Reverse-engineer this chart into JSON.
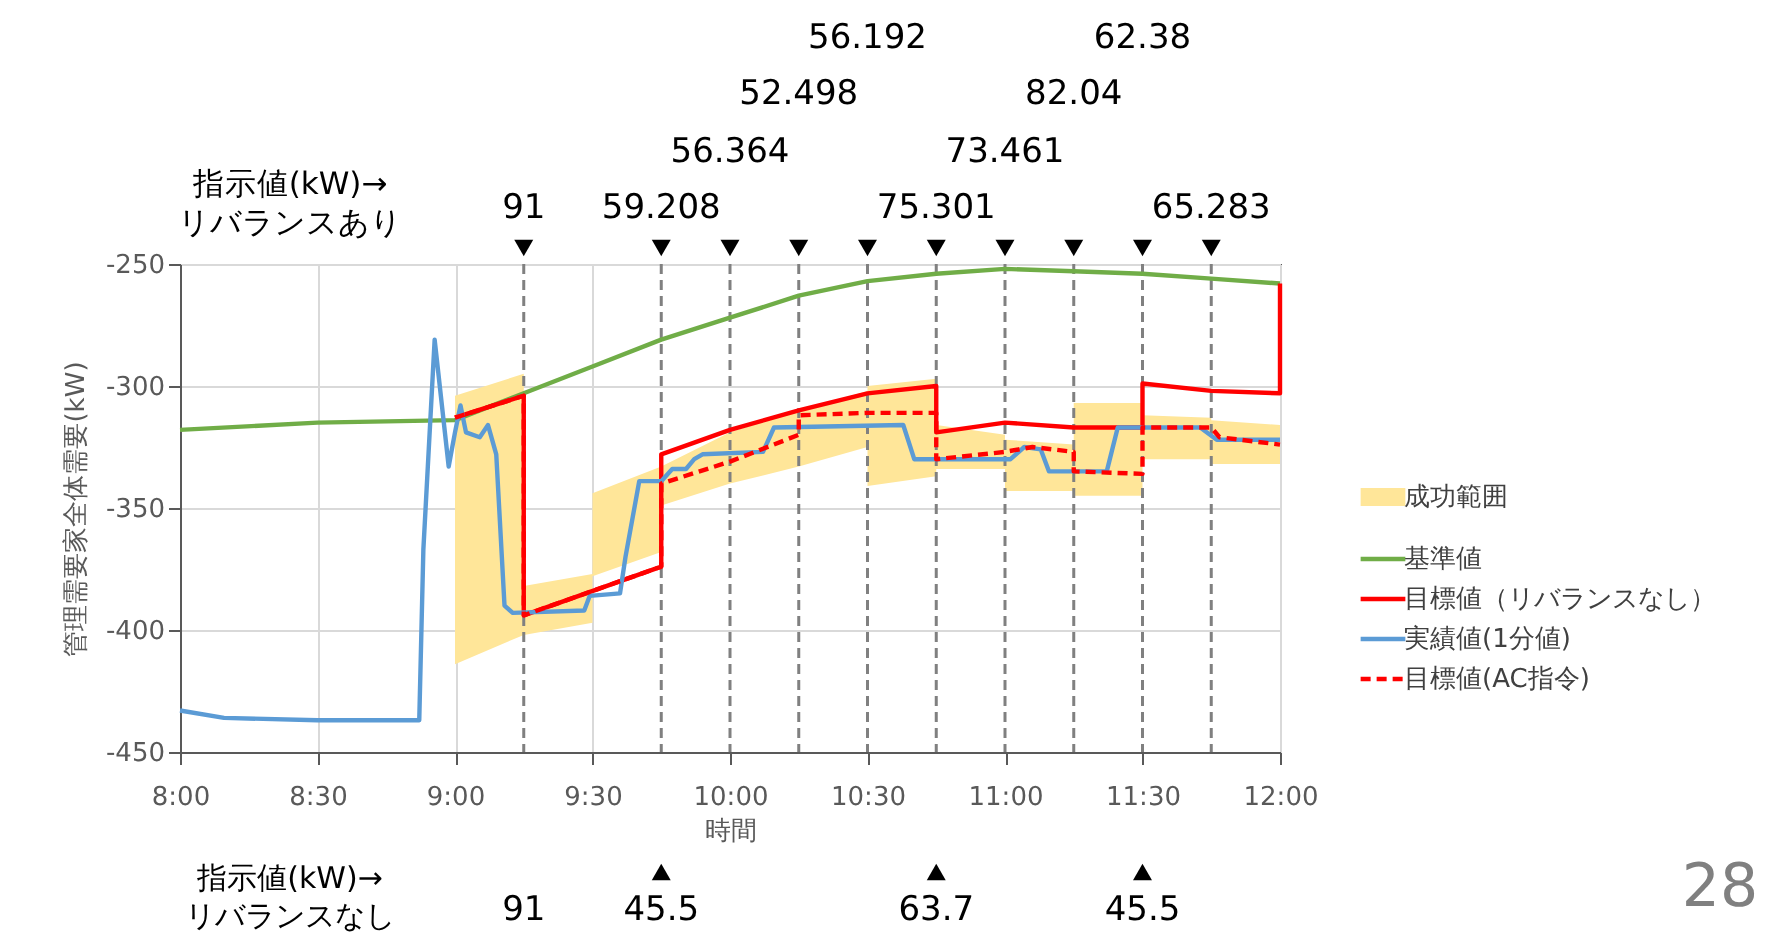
{
  "chart_data": {
    "type": "line",
    "xlabel": "時間",
    "ylabel": "管理需要家全体需要(kW)",
    "xlim": [
      8,
      12
    ],
    "ylim": [
      -450,
      -250
    ],
    "xticks": [
      {
        "value": 8,
        "label": "8:00"
      },
      {
        "value": 8.5,
        "label": "8:30"
      },
      {
        "value": 9,
        "label": "9:00"
      },
      {
        "value": 9.5,
        "label": "9:30"
      },
      {
        "value": 10,
        "label": "10:00"
      },
      {
        "value": 10.5,
        "label": "10:30"
      },
      {
        "value": 11,
        "label": "11:00"
      },
      {
        "value": 11.5,
        "label": "11:30"
      },
      {
        "value": 12,
        "label": "12:00"
      }
    ],
    "yticks": [
      -450,
      -400,
      -350,
      -300,
      -250
    ],
    "grid": true,
    "legend": "right",
    "series": [
      {
        "name": "成功範囲",
        "type": "area",
        "color": "#ffe699",
        "x": [
          9,
          9.25,
          9.25,
          9.5,
          9.5,
          9.75,
          9.75,
          10,
          10.25,
          10.5,
          10.5,
          10.75,
          10.75,
          11,
          11,
          11.25,
          11.25,
          11.5,
          11.5,
          11.75,
          11.75,
          12
        ],
        "values": [
          null,
          null,
          null,
          null,
          null,
          null,
          null,
          null,
          null,
          null,
          null,
          null,
          null,
          null,
          null,
          null,
          null,
          null,
          null,
          null,
          null,
          null
        ],
        "upper": [
          -304,
          -295,
          -382,
          -377,
          -344,
          -333,
          -333,
          -319,
          -310,
          -302,
          -300,
          -297,
          -316,
          -320,
          -322,
          -324,
          -307,
          -307,
          -312,
          -313,
          -314,
          -316
        ],
        "lower": [
          -414,
          -402,
          -402,
          -397,
          -378,
          -368,
          -349,
          -340,
          -333,
          -325,
          -341,
          -337,
          -334,
          -334,
          -343,
          -343,
          -345,
          -345,
          -330,
          -330,
          -332,
          -332
        ]
      },
      {
        "name": "基準値",
        "color": "#70ad47",
        "x": [
          8,
          8.5,
          9,
          9.25,
          9.5,
          9.75,
          10,
          10.25,
          10.5,
          10.75,
          11,
          11.25,
          11.5,
          11.75,
          12
        ],
        "values": [
          -318,
          -315,
          -314,
          -303,
          -292,
          -281,
          -272,
          -263,
          -257,
          -254,
          -252,
          -253,
          -254,
          -256,
          -258
        ]
      },
      {
        "name": "目標値（リバランスなし）",
        "color": "#ff0000",
        "x": [
          9,
          9.25,
          9.25,
          9.75,
          9.75,
          10,
          10.25,
          10.5,
          10.75,
          10.75,
          11,
          11.25,
          11.5,
          11.5,
          11.75,
          12,
          12
        ],
        "values": [
          -313,
          -304,
          -394,
          -374,
          -328,
          -318,
          -310,
          -303,
          -300,
          -319,
          -315,
          -317,
          -317,
          -299,
          -302,
          -303,
          -258
        ]
      },
      {
        "name": "実績値(1分値)",
        "color": "#5b9bd5",
        "x": [
          8,
          8.16,
          8.5,
          8.87,
          8.885,
          8.926,
          8.977,
          9.0,
          9.02,
          9.04,
          9.09,
          9.12,
          9.15,
          9.18,
          9.21,
          9.47,
          9.49,
          9.6,
          9.62,
          9.67,
          9.75,
          9.79,
          9.84,
          9.87,
          9.9,
          10.12,
          10.16,
          10.63,
          10.67,
          11.02,
          11.07,
          11.13,
          11.16,
          11.37,
          11.41,
          11.71,
          11.77,
          12
        ],
        "values": [
          -433,
          -436,
          -437,
          -437,
          -367,
          -281,
          -333,
          -319,
          -308,
          -319,
          -321,
          -316,
          -328,
          -390,
          -393,
          -392,
          -386,
          -385,
          -370,
          -339,
          -339,
          -334,
          -334,
          -330,
          -328,
          -327,
          -317,
          -316,
          -330,
          -330,
          -325,
          -326,
          -335,
          -335,
          -317,
          -317,
          -322,
          -322
        ]
      },
      {
        "name": "目標値(AC指令)",
        "color": "#ff0000",
        "line_style": "dashed",
        "x": [
          9,
          9.25,
          9.25,
          9.75,
          9.75,
          10,
          10.25,
          10.25,
          10.5,
          10.75,
          10.75,
          11,
          11.1,
          11.25,
          11.25,
          11.5,
          11.5,
          11.75,
          11.78,
          12
        ],
        "values": [
          -313,
          -304,
          -394,
          -374,
          -340,
          -331,
          -320,
          -312,
          -311,
          -311,
          -330,
          -327,
          -325,
          -327,
          -335,
          -336,
          -317,
          -317,
          -321,
          -324
        ]
      }
    ],
    "ref_lines": [
      {
        "axis": "x",
        "value": 9.25,
        "color": "#808080",
        "line_style": "dashed"
      },
      {
        "axis": "x",
        "value": 9.75,
        "color": "#808080",
        "line_style": "dashed"
      },
      {
        "axis": "x",
        "value": 10,
        "color": "#808080",
        "line_style": "dashed"
      },
      {
        "axis": "x",
        "value": 10.25,
        "color": "#808080",
        "line_style": "dashed"
      },
      {
        "axis": "x",
        "value": 10.5,
        "color": "#808080",
        "line_style": "dashed"
      },
      {
        "axis": "x",
        "value": 10.75,
        "color": "#808080",
        "line_style": "dashed"
      },
      {
        "axis": "x",
        "value": 11,
        "color": "#808080",
        "line_style": "dashed"
      },
      {
        "axis": "x",
        "value": 11.25,
        "color": "#808080",
        "line_style": "dashed"
      },
      {
        "axis": "x",
        "value": 11.5,
        "color": "#808080",
        "line_style": "dashed"
      },
      {
        "axis": "x",
        "value": 11.75,
        "color": "#808080",
        "line_style": "dashed"
      }
    ],
    "annotations": [
      "指示値(kW)→\nリバランスあり",
      "91",
      "59.208",
      "56.364",
      "52.498",
      "56.192",
      "75.301",
      "73.461",
      "82.04",
      "62.38",
      "65.283",
      "指示値(kW)→\nリバランスなし",
      "91",
      "45.5",
      "63.7",
      "45.5",
      "28"
    ]
  }
}
